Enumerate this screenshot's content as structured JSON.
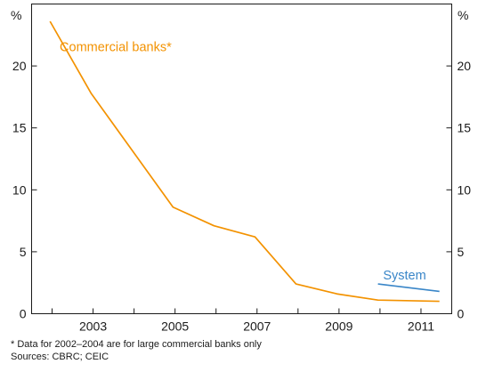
{
  "chart_data": {
    "type": "line",
    "ylabel_left": "%",
    "ylabel_right": "%",
    "ylim": [
      0,
      25
    ],
    "yticks": [
      0,
      5,
      10,
      15,
      20
    ],
    "xlim": [
      2001.5,
      2011.75
    ],
    "xticks": [
      2003,
      2005,
      2007,
      2009,
      2011
    ],
    "grid": false,
    "series": [
      {
        "name": "Commercial banks*",
        "color": "#f39200",
        "x": [
          2001.95,
          2002.95,
          2003.95,
          2004.95,
          2005.95,
          2006.95,
          2007.95,
          2008.95,
          2009.95,
          2011.45
        ],
        "y": [
          23.6,
          17.8,
          13.2,
          8.6,
          7.1,
          6.2,
          2.4,
          1.6,
          1.1,
          1.0
        ]
      },
      {
        "name": "System",
        "color": "#3a86c8",
        "x": [
          2009.95,
          2011.45
        ],
        "y": [
          2.4,
          1.8
        ]
      }
    ]
  },
  "notes": {
    "footnote": "*    Data for 2002–2004 are for large commercial banks only",
    "sources": "Sources: CBRC; CEIC"
  }
}
